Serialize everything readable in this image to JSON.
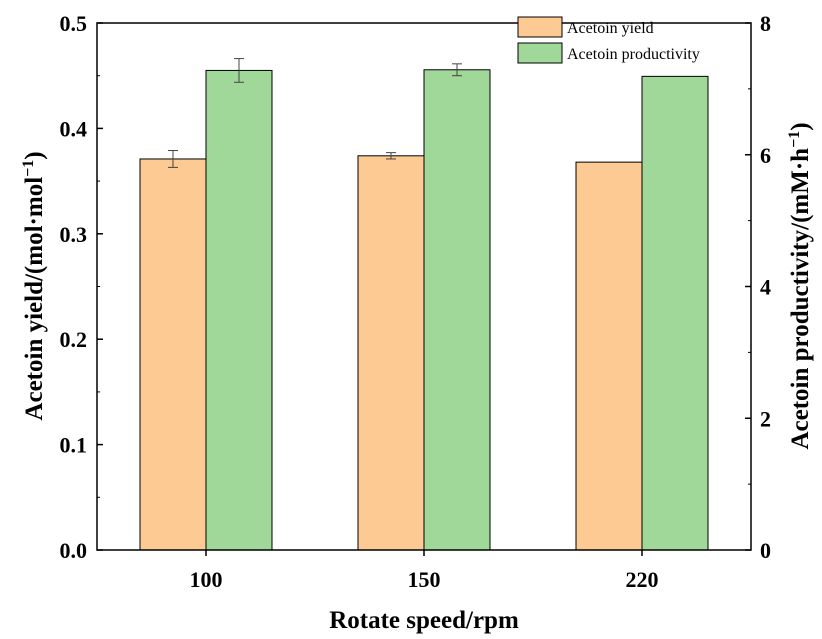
{
  "chart_data": {
    "type": "bar",
    "categories": [
      "100",
      "150",
      "220"
    ],
    "xlabel": "Rotate speed/rpm",
    "ylabel_left_main": "Acetoin yield/(mol·mol",
    "ylabel_left_sup": "−1",
    "ylabel_left_end": ")",
    "ylabel_right_main": "Acetoin productivity/(mM·h",
    "ylabel_right_sup": "−1",
    "ylabel_right_end": ")",
    "ylim_left": [
      0,
      0.5
    ],
    "ylim_right": [
      0,
      8
    ],
    "yticks_left": [
      "0.0",
      "0.1",
      "0.2",
      "0.3",
      "0.4",
      "0.5"
    ],
    "yticks_right": [
      "0",
      "2",
      "4",
      "6",
      "8"
    ],
    "legend_position": "top-right",
    "series": [
      {
        "name": "Acetoin yield",
        "axis": "left",
        "color": "#FDCA93",
        "values": [
          0.371,
          0.374,
          0.368
        ],
        "errors": [
          0.008,
          0.003,
          0
        ]
      },
      {
        "name": "Acetoin productivity",
        "axis": "right",
        "color": "#A0D89A",
        "values": [
          7.28,
          7.29,
          7.19
        ],
        "errors": [
          0.18,
          0.09,
          0
        ]
      }
    ]
  }
}
